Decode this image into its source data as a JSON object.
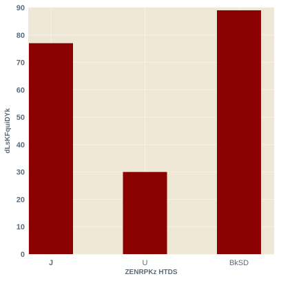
{
  "chart_data": {
    "type": "bar",
    "title": "",
    "xlabel": "ZENRPKz HTDS",
    "ylabel": "dLsKFquiDYk",
    "categories": [
      "J",
      "U",
      "BkSD"
    ],
    "values": [
      77,
      30,
      89
    ],
    "ylim": [
      0,
      90
    ],
    "yticks": [
      0,
      10,
      20,
      30,
      40,
      50,
      60,
      70,
      80,
      90
    ],
    "grid": true,
    "legend": "none",
    "colors": {
      "bar": "#8b0000",
      "plot_background": "#efe7d5",
      "grid": "#f7f2e7",
      "text": "#5b6b7a"
    }
  }
}
